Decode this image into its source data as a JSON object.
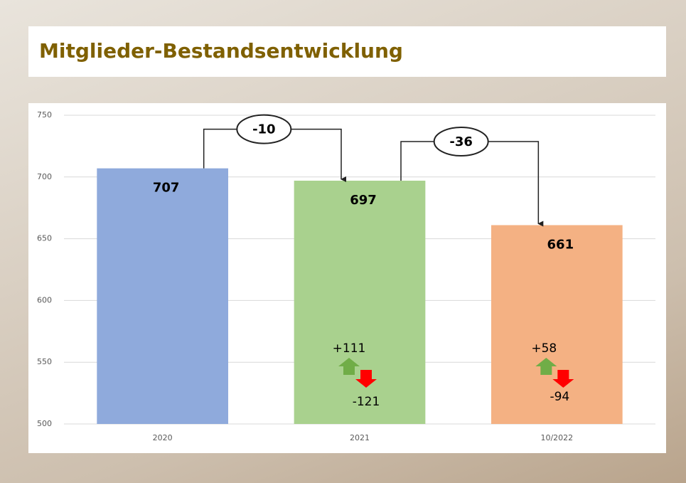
{
  "chart_data": {
    "type": "bar",
    "title": "Mitglieder-Bestandsentwicklung",
    "categories": [
      "2020",
      "2021",
      "10/2022"
    ],
    "values": [
      707,
      697,
      661
    ],
    "colors": [
      "#8faadc",
      "#a9d18e",
      "#f4b183"
    ],
    "ylim": [
      500,
      750
    ],
    "yticks": [
      500,
      550,
      600,
      650,
      700,
      750
    ],
    "grid": true,
    "changes": [
      -10,
      -36
    ],
    "inflows": {
      "values": [
        111,
        58
      ],
      "value_labels": [
        "+111",
        "+58"
      ]
    },
    "outflows": {
      "values": [
        -121,
        -94
      ]
    }
  }
}
